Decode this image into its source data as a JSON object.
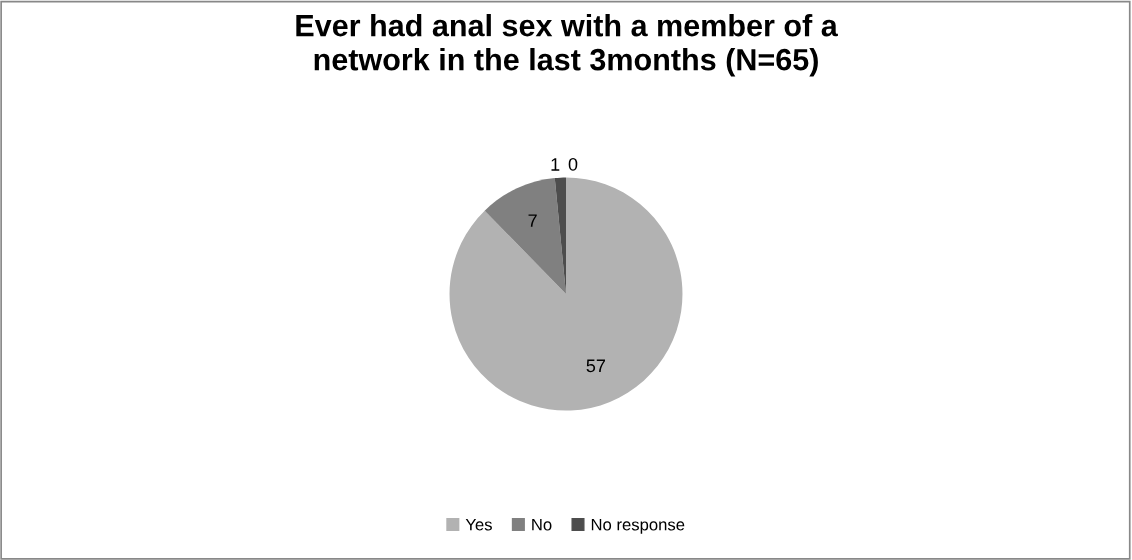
{
  "chart_data": {
    "type": "pie",
    "title": "Ever had anal sex with a member of a\nnetwork in the last 3months (N=65)",
    "categories": [
      "Yes",
      "No",
      "No response",
      null
    ],
    "values": [
      57,
      7,
      1,
      0
    ],
    "colors": [
      "#b2b2b2",
      "#808080",
      "#4d4d4d",
      "#333333"
    ],
    "value_labels": [
      "57",
      "7",
      "1",
      "0"
    ],
    "legend": "bottom"
  }
}
